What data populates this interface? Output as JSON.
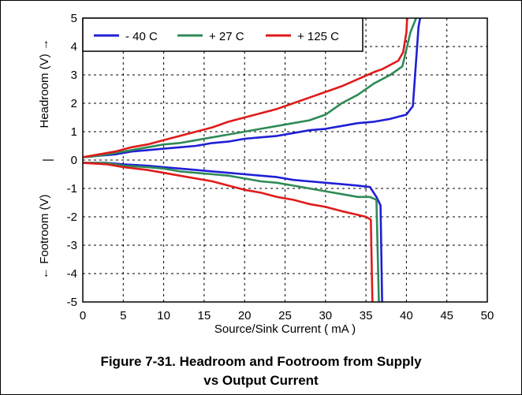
{
  "caption": {
    "line1": "Figure 7-31. Headroom and Footroom from Supply",
    "line2": "vs Output Current"
  },
  "chart_data": {
    "type": "line",
    "xlabel": "Source/Sink Current ( mA )",
    "ylabel_top": "Headroom (V) →",
    "ylabel_bottom": "← Footroom (V)",
    "ylabel_separator": "|",
    "xlim": [
      0,
      50
    ],
    "ylim": [
      -5,
      5
    ],
    "x_ticks": [
      0,
      5,
      10,
      15,
      20,
      25,
      30,
      35,
      40,
      45,
      50
    ],
    "y_ticks": [
      -5,
      -4,
      -3,
      -2,
      -1,
      0,
      1,
      2,
      3,
      4,
      5
    ],
    "grid": true,
    "legend_position": "top-left",
    "series": [
      {
        "name": "- 40 C",
        "color": "#1f1fd6",
        "headroom": {
          "x": [
            0,
            2,
            4,
            6,
            8,
            10,
            12,
            14,
            16,
            18,
            20,
            22,
            24,
            26,
            28,
            30,
            32,
            34,
            36,
            38,
            40,
            40.8,
            41.2,
            41.5,
            41.7
          ],
          "y": [
            0.1,
            0.15,
            0.2,
            0.3,
            0.35,
            0.4,
            0.45,
            0.5,
            0.6,
            0.65,
            0.75,
            0.8,
            0.85,
            0.95,
            1.05,
            1.1,
            1.2,
            1.3,
            1.35,
            1.45,
            1.6,
            1.9,
            3.5,
            4.7,
            5
          ]
        },
        "footroom": {
          "x": [
            0,
            3,
            5,
            8,
            10,
            12,
            14,
            16,
            18,
            20,
            22,
            24,
            26,
            28,
            30,
            32,
            34,
            35.5,
            36.3,
            36.8,
            37
          ],
          "y": [
            -0.1,
            -0.1,
            -0.15,
            -0.2,
            -0.25,
            -0.3,
            -0.35,
            -0.4,
            -0.45,
            -0.5,
            -0.55,
            -0.6,
            -0.7,
            -0.75,
            -0.8,
            -0.85,
            -0.9,
            -0.95,
            -1.3,
            -1.6,
            -5
          ]
        }
      },
      {
        "name": "+ 27 C",
        "color": "#2e8b57",
        "headroom": {
          "x": [
            0,
            2,
            4,
            6,
            8,
            10,
            12,
            14,
            16,
            18,
            20,
            22,
            24,
            26,
            28,
            30,
            32,
            34,
            36,
            38,
            39.5,
            40.5,
            41.2
          ],
          "y": [
            0.1,
            0.15,
            0.25,
            0.35,
            0.45,
            0.55,
            0.6,
            0.7,
            0.8,
            0.9,
            1.0,
            1.1,
            1.2,
            1.3,
            1.4,
            1.6,
            2.0,
            2.3,
            2.7,
            3.0,
            3.3,
            4.5,
            5
          ]
        },
        "footroom": {
          "x": [
            0,
            3,
            5,
            8,
            10,
            12,
            14,
            16,
            18,
            20,
            22,
            24,
            26,
            28,
            30,
            32,
            34,
            35.5,
            36.3,
            36.6
          ],
          "y": [
            -0.1,
            -0.1,
            -0.2,
            -0.25,
            -0.3,
            -0.4,
            -0.45,
            -0.5,
            -0.55,
            -0.65,
            -0.75,
            -0.8,
            -0.9,
            -1.0,
            -1.1,
            -1.2,
            -1.3,
            -1.3,
            -1.4,
            -5
          ]
        }
      },
      {
        "name": "+ 125 C",
        "color": "#e01a1a",
        "headroom": {
          "x": [
            0,
            2,
            4,
            6,
            8,
            10,
            12,
            14,
            16,
            18,
            20,
            22,
            24,
            26,
            28,
            30,
            32,
            34,
            36,
            37,
            38,
            39,
            39.6,
            40,
            40.1
          ],
          "y": [
            0.1,
            0.2,
            0.3,
            0.45,
            0.55,
            0.7,
            0.85,
            1.0,
            1.15,
            1.35,
            1.5,
            1.65,
            1.8,
            2.0,
            2.2,
            2.4,
            2.6,
            2.85,
            3.1,
            3.2,
            3.35,
            3.5,
            3.8,
            4.5,
            5
          ]
        },
        "footroom": {
          "x": [
            0,
            3,
            5,
            8,
            10,
            12,
            14,
            16,
            18,
            20,
            22,
            24,
            26,
            28,
            30,
            32,
            33.5,
            35,
            35.6,
            35.8
          ],
          "y": [
            -0.1,
            -0.15,
            -0.25,
            -0.35,
            -0.45,
            -0.55,
            -0.65,
            -0.75,
            -0.9,
            -1.05,
            -1.15,
            -1.3,
            -1.4,
            -1.55,
            -1.65,
            -1.8,
            -1.9,
            -2.0,
            -2.1,
            -5
          ]
        }
      }
    ]
  }
}
